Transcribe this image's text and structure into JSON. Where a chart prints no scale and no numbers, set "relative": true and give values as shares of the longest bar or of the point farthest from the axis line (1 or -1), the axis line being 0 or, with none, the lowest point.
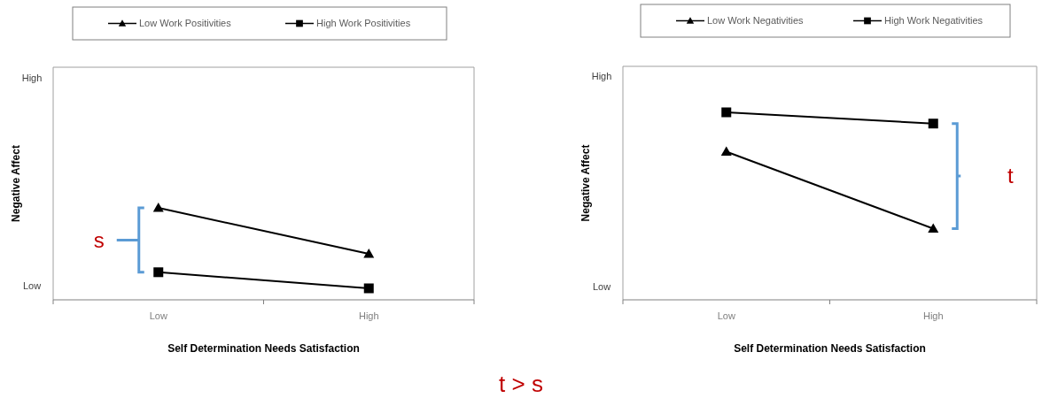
{
  "chart_data": [
    {
      "type": "line",
      "relative": true,
      "categories": [
        "Low",
        "High"
      ],
      "ylabel": "Negative Affect",
      "xlabel": "Self Determination Needs Satisfaction",
      "legend": "top",
      "series": [
        {
          "name": "Low Work Positivities",
          "color": "#000000",
          "marker": "triangle",
          "values": [
            1,
            0.5
          ]
        },
        {
          "name": "High Work Positivities",
          "color": "#000000",
          "marker": "square",
          "values": [
            0.3,
            0.125
          ]
        }
      ],
      "annotations": [
        "High",
        "Low",
        "s"
      ]
    },
    {
      "type": "line",
      "relative": true,
      "categories": [
        "Low",
        "High"
      ],
      "ylabel": "Negative Affect",
      "xlabel": "Self Determination Needs Satisfaction",
      "legend": "top",
      "series": [
        {
          "name": "Low Work Negativities",
          "color": "#000000",
          "marker": "triangle",
          "values": [
            0.79,
            0.38
          ]
        },
        {
          "name": "High Work Negativities",
          "color": "#000000",
          "marker": "square",
          "values": [
            1,
            0.94
          ]
        }
      ],
      "annotations": [
        "High",
        "Low",
        "t",
        "t > s"
      ]
    }
  ]
}
